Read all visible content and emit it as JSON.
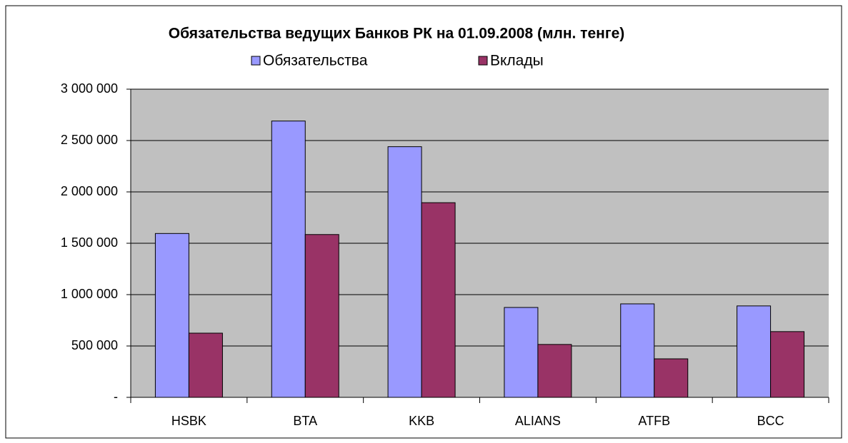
{
  "chart_data": {
    "type": "bar",
    "title": "Обязательства ведущих Банков РК на 01.09.2008 (млн. тенге)",
    "categories": [
      "HSBK",
      "BTA",
      "KKB",
      "ALIANS",
      "ATFB",
      "BCC"
    ],
    "series": [
      {
        "name": "Обязательства",
        "color": "#9999ff",
        "values": [
          1595000,
          2690000,
          2440000,
          875000,
          910000,
          890000
        ]
      },
      {
        "name": "Вклады",
        "color": "#993366",
        "values": [
          625000,
          1585000,
          1895000,
          515000,
          375000,
          640000
        ]
      }
    ],
    "ylim": [
      0,
      3000000
    ],
    "yticks": [
      {
        "value": 0,
        "label": "-"
      },
      {
        "value": 500000,
        "label": "500 000"
      },
      {
        "value": 1000000,
        "label": "1 000 000"
      },
      {
        "value": 1500000,
        "label": "1 500 000"
      },
      {
        "value": 2000000,
        "label": "2 000 000"
      },
      {
        "value": 2500000,
        "label": "2 500 000"
      },
      {
        "value": 3000000,
        "label": "3 000 000"
      }
    ],
    "grid": true,
    "legend": "top"
  }
}
